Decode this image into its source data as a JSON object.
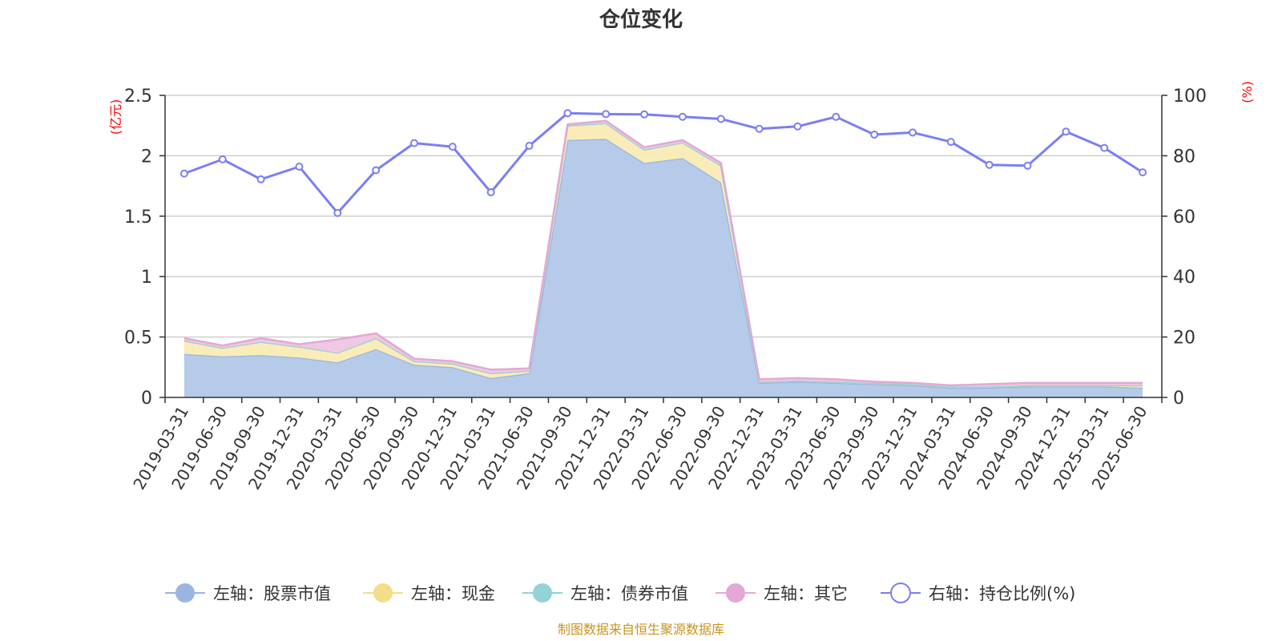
{
  "chart_data": {
    "type": "area",
    "title": "仓位变化",
    "left_axis": {
      "unit_label": "(亿元)",
      "min": 0,
      "max": 2.5,
      "ticks": [
        "0",
        "0.5",
        "1",
        "1.5",
        "2",
        "2.5"
      ]
    },
    "right_axis": {
      "unit_label": "(%)",
      "min": 0,
      "max": 100,
      "ticks": [
        "0",
        "20",
        "40",
        "60",
        "80",
        "100"
      ]
    },
    "grid": true,
    "legend_position": "bottom",
    "categories": [
      "2019-03-31",
      "2019-06-30",
      "2019-09-30",
      "2019-12-31",
      "2020-03-31",
      "2020-06-30",
      "2020-09-30",
      "2020-12-31",
      "2021-03-31",
      "2021-06-30",
      "2021-09-30",
      "2021-12-31",
      "2022-03-31",
      "2022-06-30",
      "2022-09-30",
      "2022-12-31",
      "2023-03-31",
      "2023-06-30",
      "2023-09-30",
      "2023-12-31",
      "2024-03-31",
      "2024-06-30",
      "2024-09-30",
      "2024-12-31",
      "2025-03-31",
      "2025-06-30"
    ],
    "series": [
      {
        "name": "左轴：股票市值",
        "axis": "left",
        "stacked": true,
        "color": "#9ab5e0",
        "fill": "#b5cbe9",
        "values": [
          0.36,
          0.34,
          0.35,
          0.33,
          0.29,
          0.4,
          0.27,
          0.25,
          0.16,
          0.2,
          2.13,
          2.14,
          1.94,
          1.98,
          1.78,
          0.12,
          0.13,
          0.12,
          0.11,
          0.1,
          0.08,
          0.08,
          0.09,
          0.09,
          0.09,
          0.08
        ]
      },
      {
        "name": "左轴：现金",
        "axis": "left",
        "stacked": true,
        "color": "#f3dd8a",
        "fill": "#faecb8",
        "values": [
          0.11,
          0.07,
          0.11,
          0.09,
          0.08,
          0.09,
          0.03,
          0.03,
          0.04,
          0.02,
          0.12,
          0.13,
          0.11,
          0.13,
          0.14,
          0.01,
          0.01,
          0.01,
          0.01,
          0.01,
          0.01,
          0.01,
          0.01,
          0.01,
          0.01,
          0.02
        ]
      },
      {
        "name": "左轴：债券市值",
        "axis": "left",
        "stacked": true,
        "color": "#93d2d5",
        "fill": "#bfe3e4",
        "values": [
          0,
          0,
          0,
          0,
          0,
          0,
          0,
          0,
          0,
          0,
          0,
          0,
          0,
          0,
          0,
          0,
          0,
          0,
          0,
          0,
          0,
          0,
          0,
          0,
          0,
          0
        ]
      },
      {
        "name": "左轴：其它",
        "axis": "left",
        "stacked": true,
        "color": "#e3a8d5",
        "fill": "#efc8e4",
        "values": [
          0.02,
          0.02,
          0.03,
          0.02,
          0.11,
          0.04,
          0.02,
          0.02,
          0.03,
          0.02,
          0.01,
          0.02,
          0.02,
          0.02,
          0.02,
          0.02,
          0.02,
          0.02,
          0.01,
          0.01,
          0.01,
          0.02,
          0.02,
          0.02,
          0.02,
          0.02
        ]
      },
      {
        "name": "右轴：持仓比例(%)",
        "axis": "right",
        "type": "line",
        "color": "#7b7ff2",
        "values": [
          74.1,
          78.8,
          72.2,
          76.4,
          61.1,
          75.2,
          84.2,
          83.0,
          67.9,
          83.3,
          94.1,
          93.8,
          93.7,
          92.9,
          92.2,
          88.9,
          89.7,
          92.9,
          87.0,
          87.7,
          84.6,
          77.0,
          76.7,
          88.0,
          82.6,
          74.5
        ]
      }
    ],
    "source_text": "制图数据来自恒生聚源数据库"
  }
}
